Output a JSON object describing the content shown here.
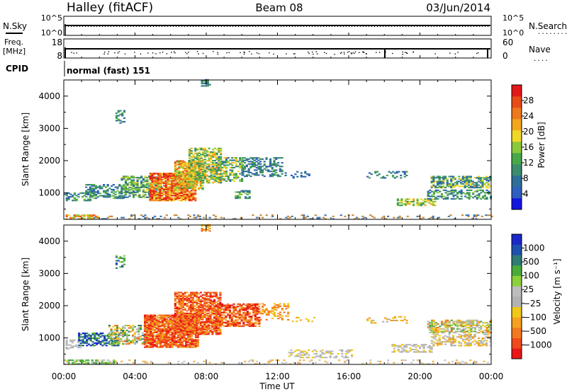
{
  "header": {
    "station": "Halley (fitACF)",
    "beam": "Beam 08",
    "date": "03/Jun/2014"
  },
  "nsky_panel": {
    "left_label": "N.Sky",
    "right_label": "N.Search",
    "ticks_left": [
      "10^5",
      "10^0"
    ],
    "ticks_right": [
      "10^5",
      "10^0"
    ],
    "right_legend_line": "........"
  },
  "freq_panel": {
    "left_label": "Freq.",
    "left_unit": "[MHz]",
    "ticks_left": [
      "18",
      "8"
    ],
    "ticks_right": [
      "60",
      "0"
    ],
    "right_label": "Nave",
    "right_legend_line": "...."
  },
  "cpid": {
    "label": "CPID",
    "value": "normal (fast) 151"
  },
  "x_axis": {
    "label": "Time UT",
    "ticks": [
      "00:00",
      "04:00",
      "08:00",
      "12:00",
      "16:00",
      "20:00",
      "00:00"
    ]
  },
  "chart_data": [
    {
      "type": "heatmap",
      "name": "power",
      "ylabel": "Slant Range [km]",
      "yticks": [
        "1000",
        "2000",
        "3000",
        "4000"
      ],
      "ylim": [
        180,
        4500
      ],
      "xlim_hours": [
        0,
        24
      ],
      "colorbar": {
        "label": "Power [dB]",
        "ticks": [
          "4",
          "8",
          "12",
          "16",
          "20",
          "24",
          "28"
        ],
        "range": [
          0,
          30
        ],
        "colors": [
          "#1515e0",
          "#2f5fc0",
          "#2e6e9a",
          "#3c8c6e",
          "#48a848",
          "#8cc83c",
          "#f0d828",
          "#f2a61c",
          "#ee781c",
          "#e84a18",
          "#e41818"
        ]
      },
      "regions": [
        {
          "t0": 0.0,
          "t1": 24.0,
          "r0": 180,
          "r1": 300,
          "dmin": 0.15,
          "c": "dots"
        },
        {
          "t0": 0.1,
          "t1": 1.9,
          "r0": 180,
          "r1": 300,
          "dmin": 0.6,
          "c": [
            14,
            26
          ]
        },
        {
          "t0": 0.0,
          "t1": 1.5,
          "r0": 750,
          "r1": 1000,
          "dmin": 0.45,
          "c": [
            4,
            14
          ]
        },
        {
          "t0": 1.2,
          "t1": 3.5,
          "r0": 820,
          "r1": 1250,
          "dmin": 0.45,
          "c": [
            4,
            14
          ]
        },
        {
          "t0": 3.2,
          "t1": 5.5,
          "r0": 850,
          "r1": 1500,
          "dmin": 0.6,
          "c": [
            4,
            18
          ]
        },
        {
          "t0": 4.8,
          "t1": 7.4,
          "r0": 750,
          "r1": 1600,
          "dmin": 0.85,
          "c": [
            16,
            30
          ]
        },
        {
          "t0": 6.2,
          "t1": 7.8,
          "r0": 1100,
          "r1": 2000,
          "dmin": 0.7,
          "c": [
            12,
            26
          ]
        },
        {
          "t0": 7.0,
          "t1": 8.8,
          "r0": 1300,
          "r1": 2400,
          "dmin": 0.6,
          "c": [
            8,
            22
          ]
        },
        {
          "t0": 8.3,
          "t1": 10.0,
          "r0": 1350,
          "r1": 2100,
          "dmin": 0.5,
          "c": [
            6,
            20
          ]
        },
        {
          "t0": 10.0,
          "t1": 12.2,
          "r0": 1500,
          "r1": 2100,
          "dmin": 0.45,
          "c": [
            4,
            12
          ]
        },
        {
          "t0": 12.4,
          "t1": 13.8,
          "r0": 1450,
          "r1": 1650,
          "dmin": 0.25,
          "c": [
            4,
            8
          ]
        },
        {
          "t0": 9.6,
          "t1": 10.4,
          "r0": 820,
          "r1": 1050,
          "dmin": 0.5,
          "c": [
            6,
            16
          ]
        },
        {
          "t0": 2.9,
          "t1": 3.4,
          "r0": 3150,
          "r1": 3550,
          "dmin": 0.3,
          "c": [
            4,
            12
          ]
        },
        {
          "t0": 7.7,
          "t1": 8.2,
          "r0": 4300,
          "r1": 4500,
          "dmin": 0.55,
          "c": [
            4,
            12
          ]
        },
        {
          "t0": 17.0,
          "t1": 19.3,
          "r0": 1450,
          "r1": 1650,
          "dmin": 0.25,
          "c": [
            4,
            12
          ]
        },
        {
          "t0": 18.7,
          "t1": 20.8,
          "r0": 600,
          "r1": 800,
          "dmin": 0.6,
          "c": [
            8,
            22
          ]
        },
        {
          "t0": 20.6,
          "t1": 24.0,
          "r0": 1150,
          "r1": 1500,
          "dmin": 0.6,
          "c": [
            4,
            20
          ]
        },
        {
          "t0": 20.4,
          "t1": 24.0,
          "r0": 800,
          "r1": 1100,
          "dmin": 0.45,
          "c": [
            4,
            16
          ]
        }
      ]
    },
    {
      "type": "heatmap",
      "name": "velocity",
      "ylabel": "Slant Range [km]",
      "yticks": [
        "1000",
        "2000",
        "3000",
        "4000"
      ],
      "ylim": [
        180,
        4500
      ],
      "xlim_hours": [
        0,
        24
      ],
      "colorbar": {
        "label": "Velocity [m s⁻¹]",
        "ticks": [
          "1000",
          "500",
          "100",
          "25",
          "−25",
          "−100",
          "−500",
          "−1000"
        ],
        "colors": [
          "#1a28c8",
          "#1e50b0",
          "#2e7c74",
          "#4aaa3a",
          "#8ccf3a",
          "#bcbcbc",
          "#b2b2b2",
          "#f0c818",
          "#f4a020",
          "#f27820",
          "#ee4a1c",
          "#e81818"
        ]
      },
      "regions": [
        {
          "t0": 0.0,
          "t1": 24.0,
          "r0": 180,
          "r1": 300,
          "dmin": 0.15,
          "c": "dots"
        },
        {
          "t0": 0.0,
          "t1": 2.8,
          "r0": 180,
          "r1": 300,
          "dmin": 0.6,
          "c": [
            3,
            5
          ]
        },
        {
          "t0": 0.1,
          "t1": 0.9,
          "r0": 650,
          "r1": 950,
          "dmin": 0.5,
          "c": [
            5,
            6
          ]
        },
        {
          "t0": 0.8,
          "t1": 3.0,
          "r0": 750,
          "r1": 1150,
          "dmin": 0.55,
          "c": [
            0,
            3
          ]
        },
        {
          "t0": 2.5,
          "t1": 4.8,
          "r0": 800,
          "r1": 1400,
          "dmin": 0.55,
          "c": [
            2,
            9
          ]
        },
        {
          "t0": 4.5,
          "t1": 7.5,
          "r0": 700,
          "r1": 1700,
          "dmin": 0.85,
          "c": [
            8,
            11
          ]
        },
        {
          "t0": 6.2,
          "t1": 8.8,
          "r0": 1100,
          "r1": 2400,
          "dmin": 0.75,
          "c": [
            8,
            11
          ]
        },
        {
          "t0": 8.5,
          "t1": 11.0,
          "r0": 1350,
          "r1": 2050,
          "dmin": 0.7,
          "c": [
            8,
            11
          ]
        },
        {
          "t0": 11.0,
          "t1": 12.6,
          "r0": 1550,
          "r1": 2050,
          "dmin": 0.35,
          "c": [
            7,
            9
          ]
        },
        {
          "t0": 12.8,
          "t1": 14.2,
          "r0": 1500,
          "r1": 1650,
          "dmin": 0.2,
          "c": [
            7,
            8
          ]
        },
        {
          "t0": 2.9,
          "t1": 3.4,
          "r0": 3150,
          "r1": 3550,
          "dmin": 0.35,
          "c": [
            1,
            4
          ]
        },
        {
          "t0": 7.7,
          "t1": 8.2,
          "r0": 4300,
          "r1": 4500,
          "dmin": 0.55,
          "c": [
            7,
            9
          ]
        },
        {
          "t0": 12.6,
          "t1": 16.2,
          "r0": 380,
          "r1": 620,
          "dmin": 0.35,
          "c": [
            5,
            7
          ]
        },
        {
          "t0": 17.0,
          "t1": 19.3,
          "r0": 1450,
          "r1": 1650,
          "dmin": 0.25,
          "c": [
            6,
            8
          ]
        },
        {
          "t0": 18.4,
          "t1": 20.6,
          "r0": 550,
          "r1": 800,
          "dmin": 0.45,
          "c": [
            5,
            7
          ]
        },
        {
          "t0": 20.4,
          "t1": 24.0,
          "r0": 1150,
          "r1": 1550,
          "dmin": 0.6,
          "c": [
            3,
            9
          ]
        },
        {
          "t0": 20.6,
          "t1": 24.0,
          "r0": 750,
          "r1": 1100,
          "dmin": 0.45,
          "c": [
            5,
            8
          ]
        }
      ]
    }
  ]
}
